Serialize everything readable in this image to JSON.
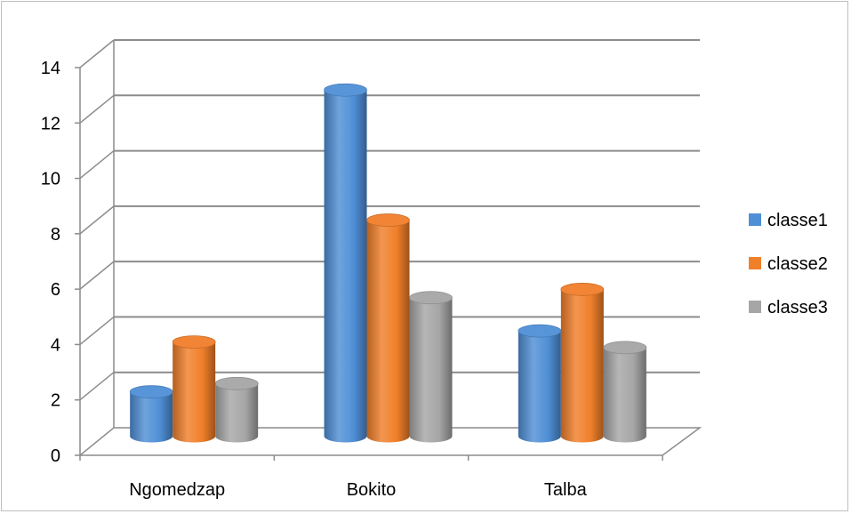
{
  "chart_data": {
    "type": "bar",
    "title": "",
    "xlabel": "",
    "ylabel": "",
    "categories": [
      "Ngomedzap",
      "Bokito",
      "Talba"
    ],
    "series": [
      {
        "name": "classe1",
        "values": [
          1.6,
          12.5,
          3.8
        ],
        "color": "#4f8fd6"
      },
      {
        "name": "classe2",
        "values": [
          3.4,
          7.8,
          5.3
        ],
        "color": "#f07f2a"
      },
      {
        "name": "classe3",
        "values": [
          1.9,
          5.0,
          3.2
        ],
        "color": "#a6a6a6"
      }
    ],
    "ylim": [
      0,
      14
    ],
    "yticks": [
      "0",
      "2",
      "4",
      "6",
      "8",
      "10",
      "12",
      "14"
    ],
    "grid": true,
    "legend_position": "right",
    "style": "3d-cylinder"
  }
}
